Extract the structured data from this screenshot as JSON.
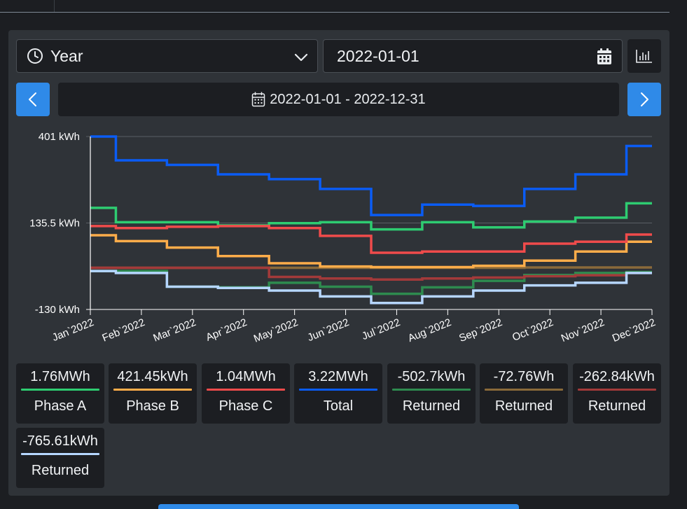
{
  "period_select": {
    "label": "Year",
    "icon": "clock-icon"
  },
  "date_input": {
    "value": "2022-01-01",
    "icon": "calendar-icon"
  },
  "chart_toggle_icon": "bar-chart-icon",
  "range_label": "2022-01-01 - 2022-12-31",
  "colors": {
    "phase_a": "#2ecc71",
    "phase_b": "#ffad4a",
    "phase_c": "#f04b4b",
    "total": "#0a5cf5",
    "ret_a": "#2e8b4f",
    "ret_b": "#8a6a3a",
    "ret_c": "#a33a3a",
    "ret_total": "#b6d6ff",
    "accent": "#2f8ae8"
  },
  "legend": [
    {
      "value": "1.76MWh",
      "name": "Phase A",
      "color": "#2ecc71"
    },
    {
      "value": "421.45kWh",
      "name": "Phase B",
      "color": "#ffad4a"
    },
    {
      "value": "1.04MWh",
      "name": "Phase C",
      "color": "#f04b4b"
    },
    {
      "value": "3.22MWh",
      "name": "Total",
      "color": "#0a5cf5"
    },
    {
      "value": "-502.7kWh",
      "name": "Returned",
      "color": "#2e8b4f"
    },
    {
      "value": "-72.76Wh",
      "name": "Returned",
      "color": "#8a6a3a"
    },
    {
      "value": "-262.84kWh",
      "name": "Returned",
      "color": "#a33a3a"
    },
    {
      "value": "-765.61kWh",
      "name": "Returned",
      "color": "#b6d6ff"
    }
  ],
  "chart_data": {
    "type": "line",
    "step": true,
    "x": [
      "Jan`2022",
      "Feb`2022",
      "Mar`2022",
      "Apr`2022",
      "May`2022",
      "Jun`2022",
      "Jul`2022",
      "Aug`2022",
      "Sep`2022",
      "Oct`2022",
      "Nov`2022",
      "Dec`2022"
    ],
    "y_ticks": [
      "401 kWh",
      "135.5 kWh",
      "-130 kWh"
    ],
    "ylim": [
      -130,
      401
    ],
    "grid": true,
    "series": [
      {
        "color": "#2e8b4f",
        "values": [
          -12,
          -12,
          -60,
          -62,
          -48,
          -60,
          -82,
          -62,
          -42,
          -24,
          -18,
          -15
        ]
      },
      {
        "color": "#8a6a3a",
        "values": [
          -2,
          -2,
          -2,
          -2,
          -2,
          -2,
          -2,
          -2,
          -2,
          -1,
          -1,
          -1
        ]
      },
      {
        "color": "#a33a3a",
        "values": [
          -2,
          -2,
          -2,
          -2,
          -30,
          -35,
          -38,
          -35,
          -32,
          -28,
          -25,
          -18
        ]
      },
      {
        "color": "#b6d6ff",
        "values": [
          -12,
          -18,
          -60,
          -64,
          -72,
          -90,
          -110,
          -90,
          -72,
          -56,
          -48,
          -18
        ]
      },
      {
        "color": "#2ecc71",
        "values": [
          182,
          138,
          138,
          128,
          135,
          138,
          116,
          138,
          122,
          140,
          152,
          196
        ]
      },
      {
        "color": "#ffad4a",
        "values": [
          98,
          80,
          60,
          34,
          12,
          2,
          0,
          0,
          4,
          20,
          48,
          78
        ]
      },
      {
        "color": "#f04b4b",
        "values": [
          126,
          120,
          124,
          126,
          120,
          96,
          44,
          48,
          48,
          72,
          78,
          100
        ]
      },
      {
        "color": "#0a5cf5",
        "values": [
          401,
          328,
          314,
          285,
          270,
          240,
          160,
          192,
          188,
          240,
          285,
          372
        ]
      }
    ]
  }
}
